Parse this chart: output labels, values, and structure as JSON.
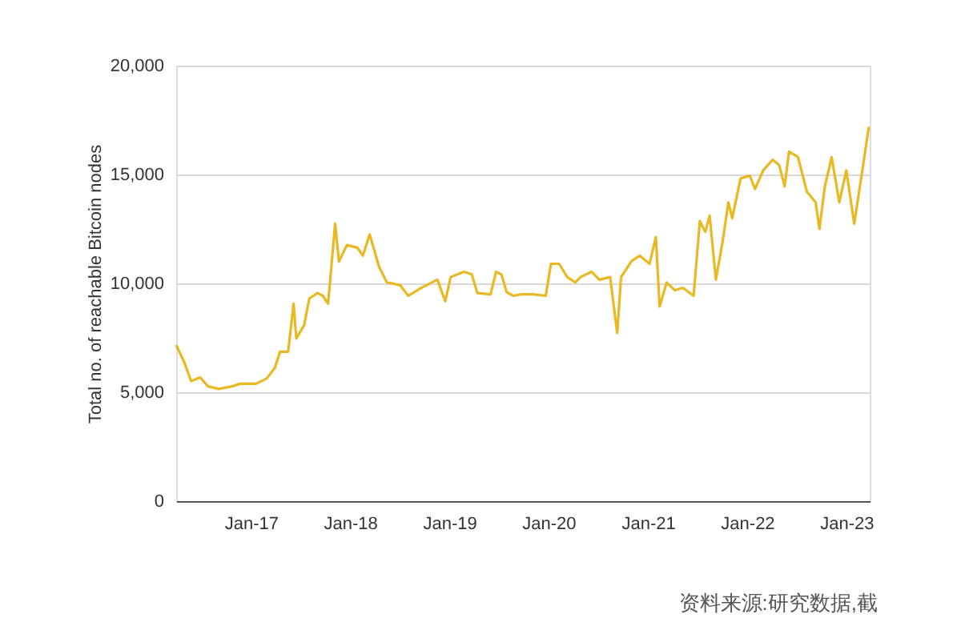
{
  "chart_data": {
    "type": "line",
    "ylabel": "Total no. of reachable Bitcoin nodes",
    "color": "#e8b923",
    "x": [
      "2016-04-01",
      "2016-05-01",
      "2016-05-26",
      "2016-06-28",
      "2016-07-27",
      "2016-09-05",
      "2016-10-23",
      "2016-11-22",
      "2017-01-20",
      "2017-02-28",
      "2017-03-30",
      "2017-04-18",
      "2017-05-18",
      "2017-06-07",
      "2017-06-17",
      "2017-07-16",
      "2017-08-04",
      "2017-09-03",
      "2017-09-23",
      "2017-10-12",
      "2017-11-07",
      "2017-11-21",
      "2017-12-20",
      "2018-01-28",
      "2018-02-17",
      "2018-03-14",
      "2018-04-17",
      "2018-05-16",
      "2018-07-04",
      "2018-08-03",
      "2018-09-21",
      "2018-11-18",
      "2018-12-17",
      "2019-01-06",
      "2019-02-24",
      "2019-03-25",
      "2019-04-14",
      "2019-06-02",
      "2019-06-22",
      "2019-07-12",
      "2019-07-31",
      "2019-08-24",
      "2019-09-24",
      "2019-11-02",
      "2019-12-22",
      "2020-01-10",
      "2020-02-09",
      "2020-03-10",
      "2020-04-08",
      "2020-04-28",
      "2020-06-07",
      "2020-07-06",
      "2020-08-15",
      "2020-09-10",
      "2020-09-24",
      "2020-11-02",
      "2020-12-02",
      "2021-01-07",
      "2021-01-30",
      "2021-02-13",
      "2021-03-11",
      "2021-04-10",
      "2021-05-09",
      "2021-06-18",
      "2021-07-11",
      "2021-07-31",
      "2021-08-16",
      "2021-09-08",
      "2021-10-04",
      "2021-10-24",
      "2021-11-07",
      "2021-12-08",
      "2022-01-11",
      "2022-01-30",
      "2022-03-01",
      "2022-04-05",
      "2022-04-29",
      "2022-05-19",
      "2022-06-04",
      "2022-07-07",
      "2022-08-09",
      "2022-09-10",
      "2022-09-24",
      "2022-10-14",
      "2022-11-08",
      "2022-12-06",
      "2023-01-01",
      "2023-01-30",
      "2023-03-01",
      "2023-03-25"
    ],
    "values": [
      7170,
      6370,
      5510,
      5680,
      5270,
      5150,
      5270,
      5390,
      5390,
      5630,
      6120,
      6860,
      6860,
      9065,
      7470,
      8085,
      9310,
      9555,
      9430,
      9065,
      12740,
      11000,
      11760,
      11640,
      11270,
      12250,
      10780,
      10045,
      9920,
      9430,
      9800,
      10170,
      9180,
      10290,
      10535,
      10410,
      9555,
      9500,
      10535,
      10410,
      9600,
      9430,
      9500,
      9500,
      9430,
      10900,
      10900,
      10290,
      10045,
      10290,
      10535,
      10170,
      10290,
      7720,
      10290,
      11025,
      11270,
      10900,
      12130,
      8940,
      10045,
      9680,
      9800,
      9430,
      12860,
      12370,
      13110,
      10170,
      12010,
      13720,
      12990,
      14820,
      14945,
      14330,
      15190,
      15680,
      15435,
      14455,
      16050,
      15800,
      14210,
      13720,
      12500,
      14455,
      15800,
      13720,
      15190,
      12740,
      15190,
      17200
    ],
    "xlim": [
      "2016-04-01",
      "2023-03-28"
    ],
    "xticks": [
      {
        "value": "2017-01-01",
        "label": "Jan-17"
      },
      {
        "value": "2018-01-01",
        "label": "Jan-18"
      },
      {
        "value": "2019-01-01",
        "label": "Jan-19"
      },
      {
        "value": "2020-01-01",
        "label": "Jan-20"
      },
      {
        "value": "2021-01-01",
        "label": "Jan-21"
      },
      {
        "value": "2022-01-01",
        "label": "Jan-22"
      },
      {
        "value": "2023-01-01",
        "label": "Jan-23"
      }
    ],
    "ylim": [
      0,
      20000
    ],
    "yticks": [
      0,
      {
        "value": 5000,
        "label": "5,000"
      },
      {
        "value": 10000,
        "label": "10,000"
      },
      {
        "value": 15000,
        "label": "15,000"
      },
      {
        "value": 20000,
        "label": "20,000"
      }
    ],
    "grid": "y",
    "annotations": [
      "资料来源:研究数据,截"
    ]
  }
}
